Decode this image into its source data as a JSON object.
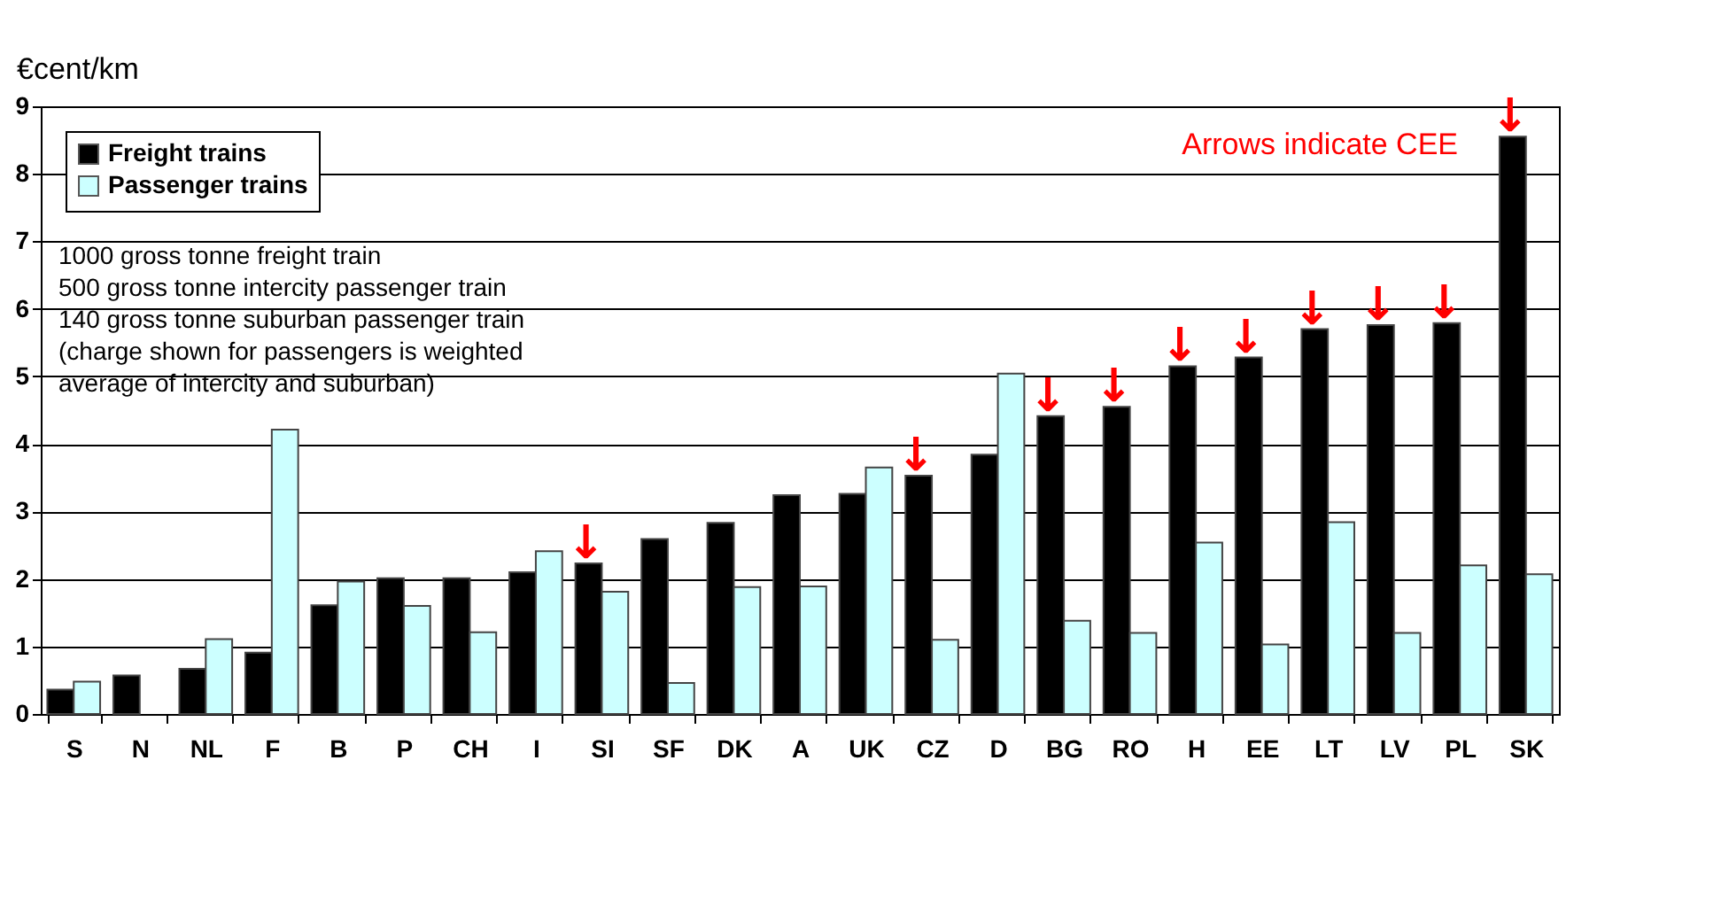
{
  "chart_data": {
    "type": "bar",
    "ylabel": "€cent/km",
    "categories": [
      "S",
      "N",
      "NL",
      "F",
      "B",
      "P",
      "CH",
      "I",
      "SI",
      "SF",
      "DK",
      "A",
      "UK",
      "CZ",
      "D",
      "BG",
      "RO",
      "H",
      "EE",
      "LT",
      "LV",
      "PL",
      "SK"
    ],
    "series": [
      {
        "name": "Freight trains",
        "color": "#000000",
        "values": [
          0.36,
          0.57,
          0.67,
          0.91,
          1.61,
          2.01,
          2.01,
          2.1,
          2.23,
          2.59,
          2.83,
          3.24,
          3.26,
          3.53,
          3.84,
          4.41,
          4.55,
          5.15,
          5.28,
          5.7,
          5.76,
          5.79,
          8.55
        ]
      },
      {
        "name": "Passenger trains",
        "color": "#ccffff",
        "values": [
          0.48,
          null,
          1.11,
          4.21,
          1.96,
          1.6,
          1.21,
          2.41,
          1.81,
          0.46,
          1.88,
          1.89,
          3.65,
          1.1,
          5.04,
          1.38,
          1.2,
          2.54,
          1.03,
          2.84,
          1.2,
          2.2,
          2.07
        ]
      }
    ],
    "ylim": [
      0,
      9
    ],
    "yticks": [
      0,
      1,
      2,
      3,
      4,
      5,
      6,
      7,
      8,
      9
    ],
    "grid": "y",
    "legend": "top left",
    "annotations": [
      "1000 gross tonne freight train\n500 gross tonne intercity passenger train\n140 gross tonne suburban passenger train\n(charge shown for passengers is weighted\naverage of intercity and suburban)",
      "Arrows indicate CEE",
      {
        "text": "↓",
        "x": "SI",
        "y": 2.23
      },
      {
        "text": "↓",
        "x": "CZ",
        "y": 3.53
      },
      {
        "text": "↓",
        "x": "BG",
        "y": 4.41
      },
      {
        "text": "↓",
        "x": "RO",
        "y": 4.55
      },
      {
        "text": "↓",
        "x": "H",
        "y": 5.15
      },
      {
        "text": "↓",
        "x": "EE",
        "y": 5.28
      },
      {
        "text": "↓",
        "x": "LT",
        "y": 5.7
      },
      {
        "text": "↓",
        "x": "LV",
        "y": 5.76
      },
      {
        "text": "↓",
        "x": "PL",
        "y": 5.79
      },
      {
        "text": "↓",
        "x": "SK",
        "y": 8.55
      }
    ]
  }
}
